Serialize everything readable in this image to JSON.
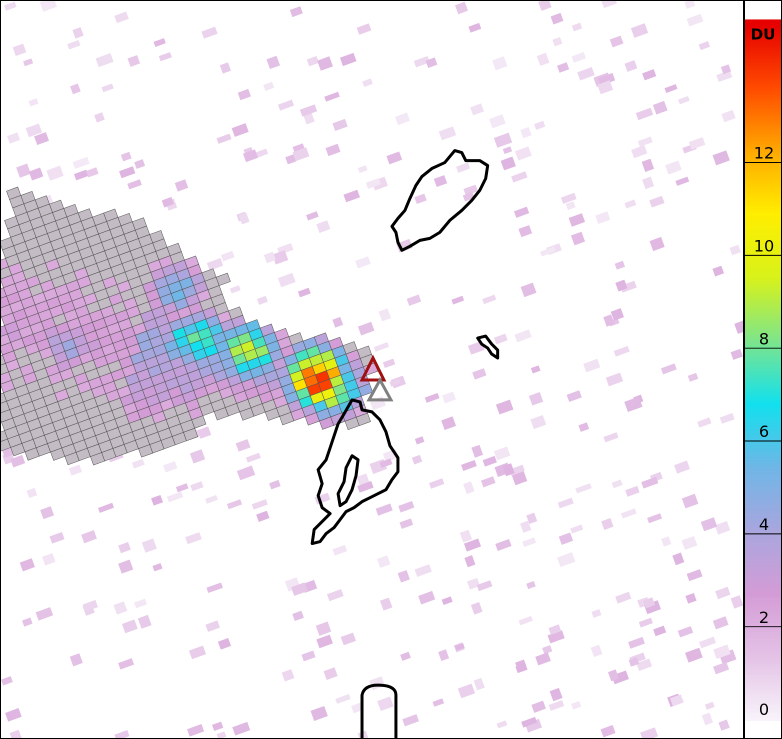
{
  "colorbar": {
    "unit": "DU",
    "range": [
      0,
      15
    ],
    "ticks": [
      "0",
      "2",
      "4",
      "6",
      "8",
      "10",
      "12"
    ],
    "colors": [
      "#f8f4fa",
      "#e4c2e6",
      "#d49cd6",
      "#a9a6de",
      "#6fb6e6",
      "#12e0ee",
      "#7ee58a",
      "#d8f21a",
      "#ffee00",
      "#ffa800",
      "#ff4a00",
      "#e60000"
    ]
  },
  "markers": [
    {
      "name": "volcano-triangle-red",
      "color": "#a01010"
    },
    {
      "name": "volcano-triangle-gray",
      "color": "#808080"
    }
  ],
  "plume_max_du": 15
}
